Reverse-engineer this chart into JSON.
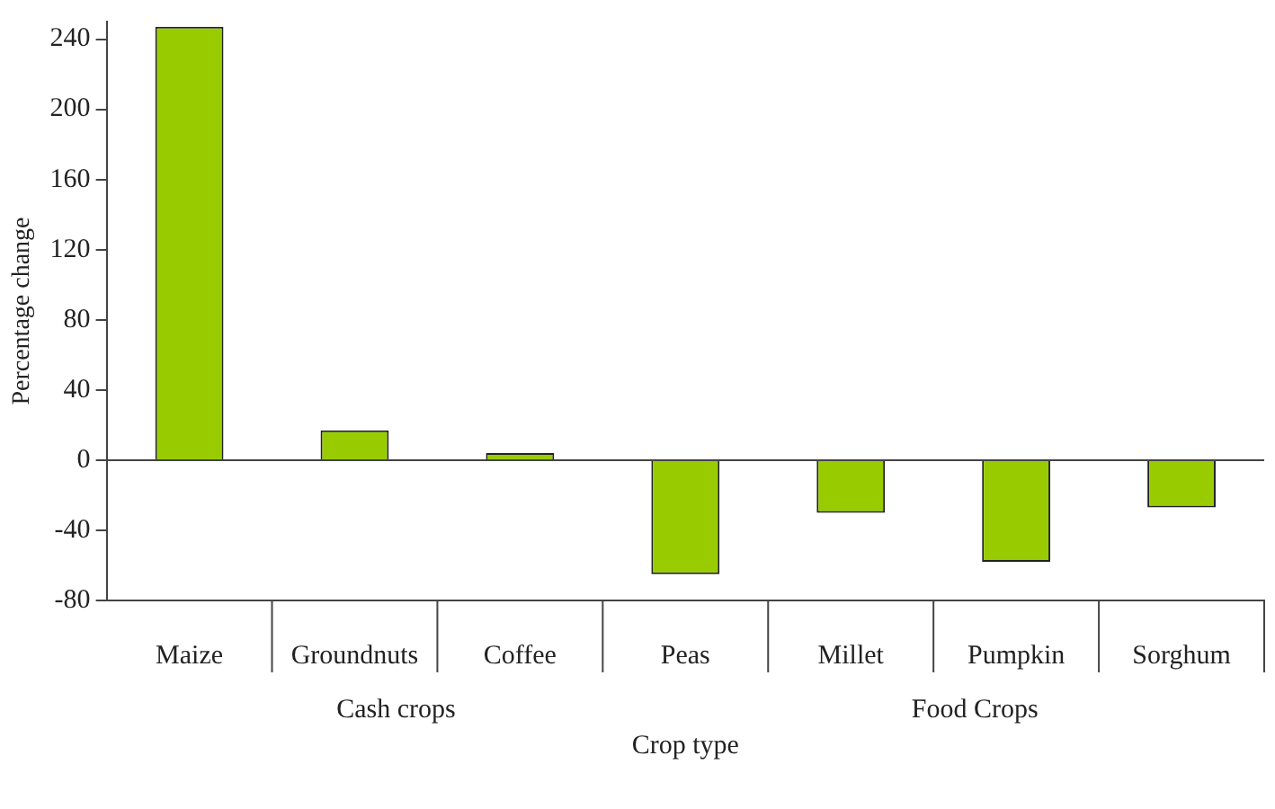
{
  "chart_data": {
    "type": "bar",
    "xlabel": "Crop type",
    "ylabel": "Percentage change",
    "categories": [
      "Maize",
      "Groundnuts",
      "Coffee",
      "Peas",
      "Millet",
      "Pumpkin",
      "Sorghum"
    ],
    "values": [
      247,
      17,
      4,
      -65,
      -30,
      -58,
      -27
    ],
    "color": "#99cc00",
    "ylim": [
      -80,
      250
    ],
    "yticks": [
      -80,
      -40,
      0,
      40,
      80,
      120,
      160,
      200,
      240
    ],
    "grid": false,
    "ref_lines": [
      {
        "axis": "y",
        "value": 0
      }
    ],
    "annotations": [
      "Cash crops",
      "Food Crops"
    ]
  }
}
